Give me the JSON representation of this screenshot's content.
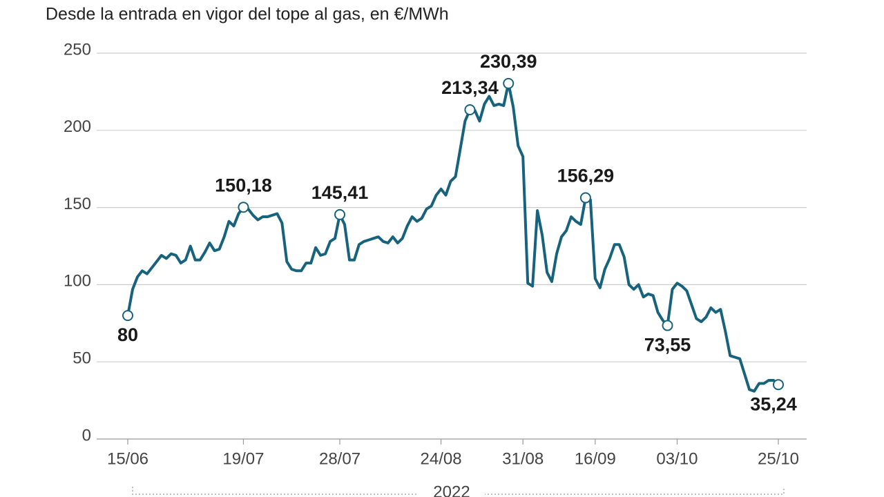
{
  "chart_data": {
    "type": "line",
    "title": "Desde la entrada en vigor del tope al gas, en €/MWh",
    "year_label": "2022",
    "color": "#17627c",
    "grid": true,
    "ylim": [
      0,
      250
    ],
    "yticks": [
      0,
      50,
      100,
      150,
      200,
      250
    ],
    "categories": [
      "15/06",
      null,
      null,
      null,
      null,
      null,
      null,
      null,
      null,
      null,
      null,
      null,
      null,
      null,
      null,
      null,
      null,
      null,
      null,
      null,
      null,
      null,
      null,
      null,
      "19/07",
      null,
      null,
      null,
      null,
      null,
      null,
      null,
      null,
      null,
      null,
      null,
      null,
      null,
      null,
      null,
      null,
      null,
      null,
      null,
      "28/07",
      null,
      null,
      null,
      null,
      null,
      null,
      null,
      null,
      null,
      null,
      null,
      null,
      null,
      null,
      null,
      null,
      null,
      null,
      null,
      null,
      "24/08",
      null,
      null,
      null,
      null,
      null,
      null,
      null,
      null,
      null,
      null,
      null,
      null,
      null,
      null,
      null,
      null,
      "31/08",
      null,
      null,
      null,
      null,
      null,
      null,
      null,
      null,
      null,
      null,
      null,
      null,
      null,
      null,
      "16/09",
      null,
      null,
      null,
      null,
      null,
      null,
      null,
      null,
      null,
      null,
      null,
      null,
      null,
      null,
      null,
      null,
      "03/10",
      null,
      null,
      null,
      null,
      null,
      null,
      null,
      null,
      null,
      null,
      null,
      null,
      null,
      null,
      null,
      null,
      null,
      null,
      null,
      null,
      "25/10"
    ],
    "values": [
      80,
      97,
      105,
      109,
      107,
      111,
      115,
      119,
      117,
      120,
      119,
      114,
      116,
      125,
      116,
      116,
      121,
      127,
      122,
      123,
      131,
      141,
      138,
      146,
      150.18,
      149,
      145,
      142,
      144,
      144,
      145,
      146,
      140,
      115,
      110,
      109,
      109,
      114,
      114,
      124,
      119,
      120,
      128,
      130,
      145.41,
      139,
      116,
      116,
      126,
      128,
      129,
      130,
      131,
      128,
      127,
      131,
      127,
      130,
      138,
      144,
      141,
      143,
      149,
      151,
      158,
      162,
      158,
      167,
      170,
      188,
      206,
      213.34,
      213,
      206,
      217,
      222,
      216,
      217,
      216,
      230.39,
      215,
      190,
      183,
      101,
      99,
      148,
      132,
      108,
      102,
      120,
      131,
      135,
      144,
      141,
      139,
      156.29,
      155,
      104,
      98,
      110,
      117,
      126,
      126,
      118,
      100,
      97,
      100,
      92,
      94,
      93,
      82,
      77,
      73.55,
      97,
      101,
      99,
      96,
      87,
      78,
      76,
      79,
      85,
      82,
      84,
      70,
      54,
      53,
      52,
      42,
      32,
      31,
      36,
      36,
      38,
      38,
      35.24
    ],
    "value_labels": [
      "80",
      null,
      null,
      null,
      null,
      null,
      null,
      null,
      null,
      null,
      null,
      null,
      null,
      null,
      null,
      null,
      null,
      null,
      null,
      null,
      null,
      null,
      null,
      null,
      "150,18",
      null,
      null,
      null,
      null,
      null,
      null,
      null,
      null,
      null,
      null,
      null,
      null,
      null,
      null,
      null,
      null,
      null,
      null,
      null,
      "145,41",
      null,
      null,
      null,
      null,
      null,
      null,
      null,
      null,
      null,
      null,
      null,
      null,
      null,
      null,
      null,
      null,
      null,
      null,
      null,
      null,
      null,
      null,
      null,
      null,
      null,
      null,
      "213,34",
      null,
      null,
      null,
      null,
      null,
      null,
      null,
      "230,39",
      null,
      null,
      null,
      null,
      null,
      null,
      null,
      null,
      null,
      null,
      null,
      null,
      null,
      null,
      null,
      "156,29",
      null,
      null,
      null,
      null,
      null,
      null,
      null,
      null,
      null,
      null,
      null,
      null,
      null,
      null,
      null,
      null,
      "73,55",
      null,
      null,
      null,
      null,
      null,
      null,
      null,
      null,
      null,
      null,
      null,
      null,
      null,
      null,
      null,
      null,
      null,
      null,
      null,
      null,
      null,
      null,
      "35,24"
    ]
  }
}
